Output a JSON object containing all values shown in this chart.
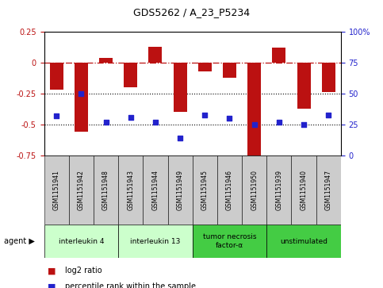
{
  "title": "GDS5262 / A_23_P5234",
  "samples": [
    "GSM1151941",
    "GSM1151942",
    "GSM1151948",
    "GSM1151943",
    "GSM1151944",
    "GSM1151949",
    "GSM1151945",
    "GSM1151946",
    "GSM1151950",
    "GSM1151939",
    "GSM1151940",
    "GSM1151947"
  ],
  "log2_ratio": [
    -0.22,
    -0.56,
    0.04,
    -0.2,
    0.13,
    -0.4,
    -0.07,
    -0.12,
    -0.8,
    0.12,
    -0.37,
    -0.24
  ],
  "percentile": [
    32,
    50,
    27,
    31,
    27,
    14,
    33,
    30,
    25,
    27,
    25,
    33
  ],
  "ylim_left": [
    -0.75,
    0.25
  ],
  "ylim_right": [
    0,
    100
  ],
  "bar_color": "#BB1111",
  "dot_color": "#2222CC",
  "dotted_lines": [
    -0.25,
    -0.5
  ],
  "agents": [
    {
      "label": "interleukin 4",
      "start": 0,
      "end": 3,
      "color": "#CCFFCC"
    },
    {
      "label": "interleukin 13",
      "start": 3,
      "end": 6,
      "color": "#CCFFCC"
    },
    {
      "label": "tumor necrosis\nfactor-α",
      "start": 6,
      "end": 9,
      "color": "#44CC44"
    },
    {
      "label": "unstimulated",
      "start": 9,
      "end": 12,
      "color": "#44CC44"
    }
  ],
  "legend_items": [
    {
      "color": "#BB1111",
      "label": "log2 ratio"
    },
    {
      "color": "#2222CC",
      "label": "percentile rank within the sample"
    }
  ],
  "agent_label": "agent"
}
